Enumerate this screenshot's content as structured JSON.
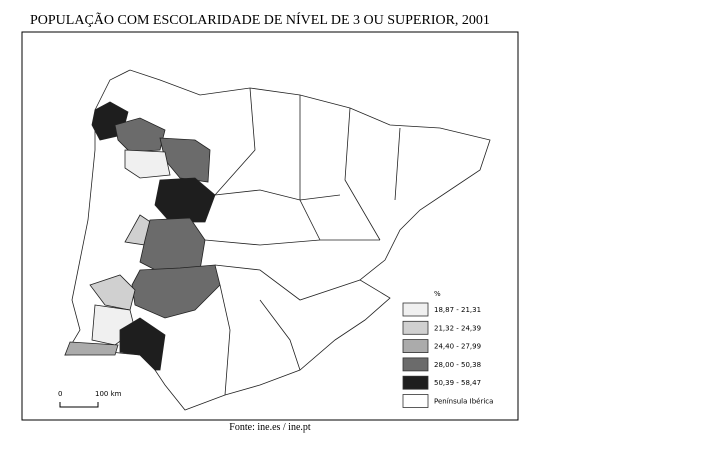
{
  "title": "POPULAÇÃO COM ESCOLARIDADE DE NÍVEL DE 3 OU SUPERIOR, 2001",
  "legend": {
    "unit": "%",
    "items": [
      {
        "label": "18,87 - 21,31",
        "color": "#f0f0f0"
      },
      {
        "label": "21,32 - 24,39",
        "color": "#d0d0d0"
      },
      {
        "label": "24,40 - 27,99",
        "color": "#ababab"
      },
      {
        "label": "28,00 - 50,38",
        "color": "#6b6b6b"
      },
      {
        "label": "50,39 - 58,47",
        "color": "#1e1e1e"
      },
      {
        "label": "Península Ibérica",
        "color": "#ffffff"
      }
    ]
  },
  "scale": {
    "start": "0",
    "end": "100 km"
  },
  "source": "Fonte: ine.es / ine.pt"
}
